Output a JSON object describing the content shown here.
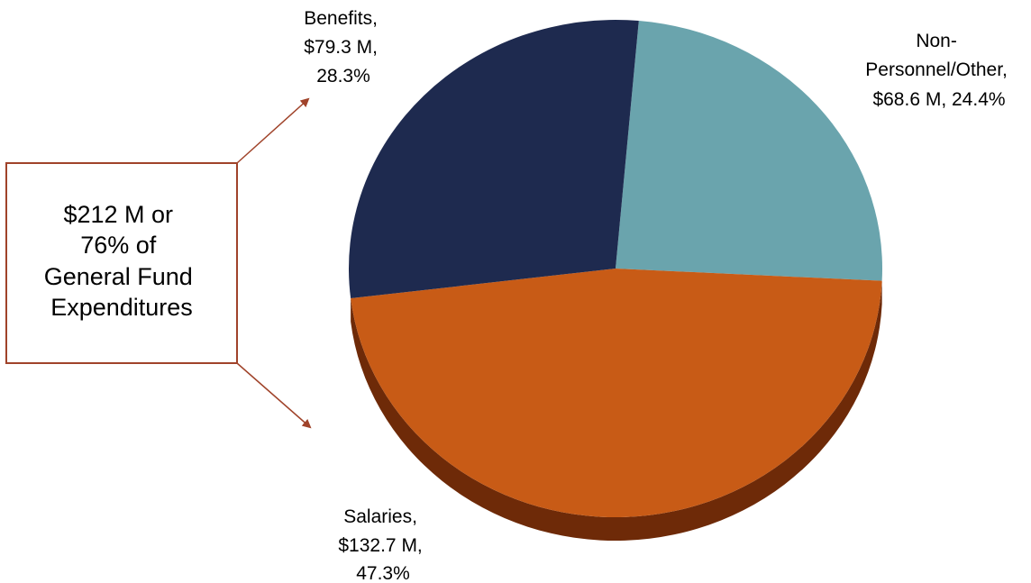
{
  "chart_data": {
    "type": "pie",
    "title": "",
    "slices": [
      {
        "name": "Non-Personnel/Other",
        "amount": 68.6,
        "percent": 24.4,
        "color": "#6aa4ad"
      },
      {
        "name": "Salaries",
        "amount": 132.7,
        "percent": 47.3,
        "color": "#c85b16"
      },
      {
        "name": "Benefits",
        "amount": 79.3,
        "percent": 28.3,
        "color": "#1e2a4f"
      }
    ],
    "labels": {
      "non_personnel": [
        "Non-",
        "Personnel/Other,",
        "$68.6 M, 24.4%"
      ],
      "salaries": [
        "Salaries,",
        "$132.7 M,",
        "47.3%"
      ],
      "benefits": [
        "Benefits,",
        "$79.3 M,",
        "28.3%"
      ]
    },
    "callout": {
      "lines": [
        "$212 M or",
        "76% of",
        "General Fund",
        "Expenditures"
      ],
      "border_color": "#a0432a",
      "arrow_color": "#a0432a"
    },
    "side_color": "#6e2a08"
  }
}
